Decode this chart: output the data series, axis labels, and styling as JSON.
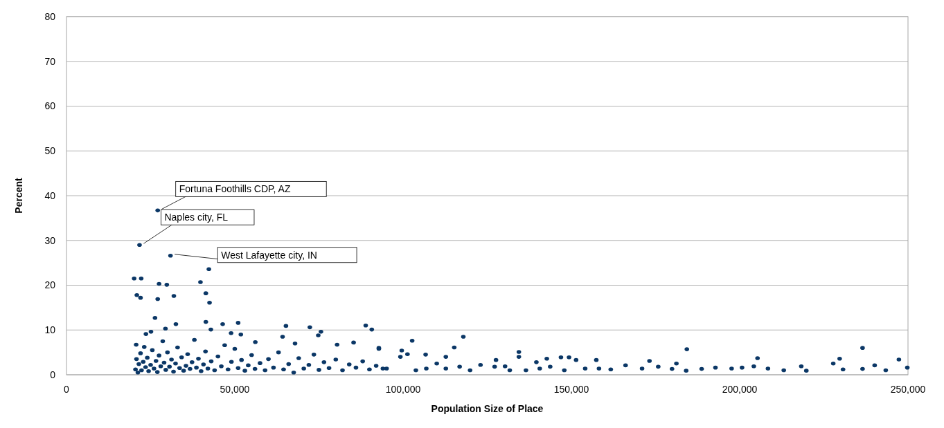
{
  "chart_data": {
    "type": "scatter",
    "xlabel": "Population Size of Place",
    "ylabel": "Percent",
    "xlim": [
      0,
      250000
    ],
    "xticks": [
      {
        "value": 0,
        "label": "0"
      },
      {
        "value": 50000,
        "label": "50,000"
      },
      {
        "value": 100000,
        "label": "100,000"
      },
      {
        "value": 150000,
        "label": "150,000"
      },
      {
        "value": 200000,
        "label": "200,000"
      },
      {
        "value": 250000,
        "label": "250,000"
      }
    ],
    "ylim": [
      0,
      80
    ],
    "yticks": [
      0,
      10,
      20,
      30,
      40,
      50,
      60,
      70,
      80
    ],
    "grid": "y",
    "marker": "circle",
    "annotations": [
      {
        "text": "Fortuna Foothills CDP, AZ",
        "x": 27100,
        "y": 36.7
      },
      {
        "text": "Naples city, FL",
        "x": 21700,
        "y": 29.0
      },
      {
        "text": "West Lafayette city, IN",
        "x": 30900,
        "y": 26.6
      }
    ],
    "series": [
      {
        "color": "#0b3766",
        "x": [
          27100,
          21700,
          30900,
          42300,
          20100,
          22200,
          27500,
          29800,
          39800,
          20900,
          22000,
          27100,
          31900,
          41400,
          42500,
          26300,
          32500,
          41400,
          46400,
          51000,
          65200,
          72300,
          88900,
          90700,
          29400,
          25100,
          23600,
          42900,
          48900,
          51800,
          75600,
          74800,
          20700,
          64200,
          80400,
          85300,
          92800,
          56100,
          67900,
          102700,
          117900,
          115200,
          184300,
          236500,
          134400,
          92800,
          205300,
          229700,
          247300,
          173200,
          157400,
          142700,
          149300,
          146900,
          106700,
          112700,
          139600,
          127600,
          249800,
          243400,
          240100,
          236500,
          230700,
          227800,
          219800,
          218300,
          213100,
          208400,
          204200,
          200700,
          197600,
          192800,
          188700,
          184100,
          181200,
          179900,
          175800,
          171000,
          166100,
          161700,
          158200,
          154100,
          151400,
          147900,
          143700,
          140600,
          136500,
          134400,
          131700,
          130300,
          127200,
          123000,
          119900,
          116800,
          112700,
          110000,
          106900,
          103800,
          99600,
          99200,
          101300,
          95100,
          20500,
          20800,
          21200,
          21500,
          22000,
          22300,
          22800,
          23100,
          23500,
          24000,
          24400,
          25000,
          25500,
          26000,
          26600,
          27000,
          27500,
          28000,
          28600,
          29000,
          29500,
          30000,
          30600,
          31200,
          31800,
          32400,
          33000,
          33600,
          34200,
          34800,
          35500,
          36000,
          36700,
          37300,
          38000,
          38600,
          39200,
          40000,
          40700,
          41300,
          42000,
          43000,
          44000,
          45000,
          46000,
          47000,
          48000,
          49000,
          50000,
          51000,
          52000,
          53000,
          54000,
          55000,
          56000,
          57500,
          59000,
          60000,
          61500,
          63000,
          64500,
          66000,
          67500,
          69000,
          70500,
          72000,
          73500,
          75000,
          76500,
          78000,
          80000,
          82000,
          84000,
          86000,
          88000,
          90000,
          92000,
          94000
        ],
        "values": [
          36.7,
          29.0,
          26.6,
          23.6,
          21.5,
          21.5,
          20.3,
          20.1,
          20.7,
          17.8,
          17.2,
          16.9,
          17.6,
          18.2,
          16.1,
          12.7,
          11.3,
          11.8,
          11.3,
          11.6,
          10.9,
          10.6,
          11.0,
          10.1,
          10.3,
          9.6,
          9.1,
          10.1,
          9.3,
          9.0,
          9.6,
          8.8,
          6.7,
          8.5,
          6.7,
          7.2,
          6.0,
          7.3,
          7.0,
          7.6,
          8.5,
          6.1,
          5.7,
          6.0,
          5.1,
          5.8,
          3.7,
          3.6,
          3.4,
          3.1,
          3.3,
          3.6,
          3.9,
          3.9,
          4.5,
          4.0,
          2.8,
          3.3,
          1.6,
          1.0,
          2.1,
          1.3,
          1.2,
          2.5,
          0.9,
          1.9,
          1.0,
          1.4,
          1.9,
          1.6,
          1.4,
          1.6,
          1.3,
          0.9,
          2.5,
          1.3,
          1.8,
          1.4,
          2.1,
          1.2,
          1.4,
          1.4,
          3.3,
          1.0,
          1.8,
          1.4,
          1.0,
          4.0,
          1.0,
          1.9,
          1.8,
          2.2,
          1.0,
          1.8,
          1.4,
          2.5,
          1.4,
          1.0,
          5.4,
          4.0,
          4.6,
          1.4,
          1.2,
          3.5,
          0.5,
          2.4,
          4.8,
          1.0,
          2.9,
          6.2,
          1.7,
          3.8,
          0.8,
          2.2,
          5.5,
          1.4,
          3.1,
          0.6,
          4.3,
          1.9,
          7.5,
          2.7,
          1.1,
          5.0,
          1.8,
          3.4,
          0.7,
          2.5,
          6.1,
          1.5,
          3.9,
          0.9,
          2.0,
          4.6,
          1.3,
          2.8,
          7.8,
          1.6,
          3.6,
          0.8,
          2.3,
          5.2,
          1.4,
          3.0,
          1.0,
          4.1,
          1.9,
          6.6,
          1.2,
          2.9,
          5.8,
          1.5,
          3.3,
          0.9,
          2.1,
          4.4,
          1.3,
          2.6,
          1.0,
          3.5,
          1.6,
          5.0,
          1.2,
          2.4,
          0.5,
          3.7,
          1.4,
          2.2,
          4.5,
          1.1,
          2.8,
          1.5,
          3.4,
          1.0,
          2.3,
          1.6,
          3.0,
          1.2,
          2.0,
          1.4
        ]
      }
    ]
  }
}
